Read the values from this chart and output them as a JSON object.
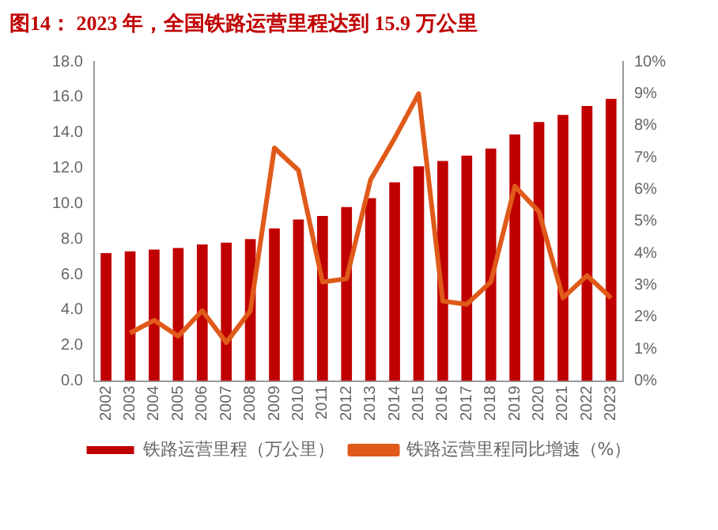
{
  "chart_data": {
    "type": "bar",
    "title": "图14：  2023 年，全国铁路运营里程达到 15.9 万公里",
    "categories": [
      "2002",
      "2003",
      "2004",
      "2005",
      "2006",
      "2007",
      "2008",
      "2009",
      "2010",
      "2011",
      "2012",
      "2013",
      "2014",
      "2015",
      "2016",
      "2017",
      "2018",
      "2019",
      "2020",
      "2021",
      "2022",
      "2023"
    ],
    "series": [
      {
        "name": "铁路运营里程（万公里）",
        "color": "#c00000",
        "values": [
          7.2,
          7.3,
          7.4,
          7.5,
          7.7,
          7.8,
          8.0,
          8.6,
          9.1,
          9.3,
          9.8,
          10.3,
          11.2,
          12.1,
          12.4,
          12.7,
          13.1,
          13.9,
          14.6,
          15.0,
          15.5,
          15.9
        ]
      },
      {
        "name": "铁路运营里程同比增速（%）",
        "type": "line",
        "axis": "y2",
        "color": "#e05a1a",
        "values": [
          null,
          1.5,
          1.9,
          1.4,
          2.2,
          1.2,
          2.2,
          7.3,
          6.6,
          3.1,
          3.2,
          6.3,
          7.6,
          9.0,
          2.5,
          2.4,
          3.1,
          6.1,
          5.3,
          2.6,
          3.3,
          2.6
        ]
      }
    ],
    "ylim": [
      0,
      18
    ],
    "yticks": [
      {
        "value": 0,
        "label": "0.0"
      },
      {
        "value": 2,
        "label": "2.0"
      },
      {
        "value": 4,
        "label": "4.0"
      },
      {
        "value": 6,
        "label": "6.0"
      },
      {
        "value": 8,
        "label": "8.0"
      },
      {
        "value": 10,
        "label": "10.0"
      },
      {
        "value": 12,
        "label": "12.0"
      },
      {
        "value": 14,
        "label": "14.0"
      },
      {
        "value": 16,
        "label": "16.0"
      },
      {
        "value": 18,
        "label": "18.0"
      }
    ],
    "y2lim": [
      0,
      10
    ],
    "y2ticks": [
      {
        "value": 0,
        "label": "0%"
      },
      {
        "value": 1,
        "label": "1%"
      },
      {
        "value": 2,
        "label": "2%"
      },
      {
        "value": 3,
        "label": "3%"
      },
      {
        "value": 4,
        "label": "4%"
      },
      {
        "value": 5,
        "label": "5%"
      },
      {
        "value": 6,
        "label": "6%"
      },
      {
        "value": 7,
        "label": "7%"
      },
      {
        "value": 8,
        "label": "8%"
      },
      {
        "value": 9,
        "label": "9%"
      },
      {
        "value": 10,
        "label": "10%"
      }
    ],
    "grid": false,
    "legend": "bottom",
    "marker": "none"
  }
}
